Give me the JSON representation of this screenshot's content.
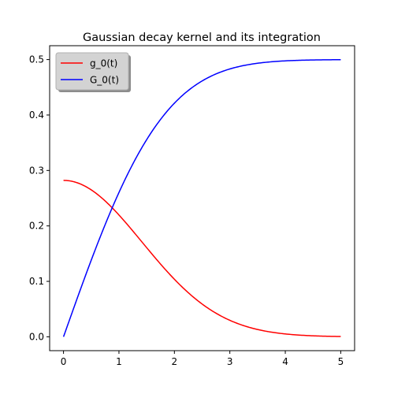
{
  "chart_data": {
    "type": "line",
    "title": "Gaussian decay kernel and its integration",
    "xlabel": "",
    "ylabel": "",
    "xlim": [
      -0.25,
      5.25
    ],
    "ylim": [
      -0.025,
      0.525
    ],
    "xticks": [
      0,
      1,
      2,
      3,
      4,
      5
    ],
    "xtick_labels": [
      "0",
      "1",
      "2",
      "3",
      "4",
      "5"
    ],
    "yticks": [
      0.0,
      0.1,
      0.2,
      0.3,
      0.4,
      0.5
    ],
    "ytick_labels": [
      "0.0",
      "0.1",
      "0.2",
      "0.3",
      "0.4",
      "0.5"
    ],
    "grid": false,
    "legend_position": "top-left",
    "x": [
      0,
      0.25,
      0.5,
      0.75,
      1.0,
      1.25,
      1.5,
      1.75,
      2.0,
      2.25,
      2.5,
      2.75,
      3.0,
      3.25,
      3.5,
      3.75,
      4.0,
      4.25,
      4.5,
      4.75,
      5.0
    ],
    "series": [
      {
        "name": "g_0(t)",
        "color": "#ff0000",
        "values": [
          0.2821,
          0.2765,
          0.2603,
          0.2352,
          0.2041,
          0.17,
          0.1359,
          0.1043,
          0.0768,
          0.0543,
          0.0369,
          0.024,
          0.015,
          0.009,
          0.0052,
          0.0029,
          0.0015,
          0.0008,
          0.0004,
          0.0002,
          0.0001
        ]
      },
      {
        "name": "G_0(t)",
        "color": "#0000ff",
        "values": [
          0.0,
          0.0701,
          0.1382,
          0.2024,
          0.2602,
          0.3096,
          0.3498,
          0.3808,
          0.4031,
          0.419,
          0.4311,
          0.4387,
          0.4433,
          0.4466,
          0.4486,
          0.4494,
          0.4497,
          0.4499,
          0.45,
          0.5,
          0.5
        ]
      }
    ]
  }
}
